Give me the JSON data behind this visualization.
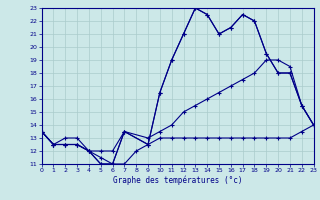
{
  "title": "Graphe des températures (°c)",
  "bg_color": "#cce8e8",
  "grid_color": "#aacccc",
  "line_color": "#000088",
  "ylim": [
    11,
    23
  ],
  "xlim": [
    0,
    23
  ],
  "yticks": [
    11,
    12,
    13,
    14,
    15,
    16,
    17,
    18,
    19,
    20,
    21,
    22,
    23
  ],
  "xticks": [
    0,
    1,
    2,
    3,
    4,
    5,
    6,
    7,
    8,
    9,
    10,
    11,
    12,
    13,
    14,
    15,
    16,
    17,
    18,
    19,
    20,
    21,
    22,
    23
  ],
  "series1_x": [
    0,
    1,
    2,
    3,
    4,
    5,
    6,
    7,
    9,
    10,
    11,
    12,
    13,
    14,
    15,
    16,
    17,
    18,
    19,
    20,
    21,
    22,
    23
  ],
  "series1_y": [
    13.5,
    12.5,
    12.5,
    12.5,
    12.0,
    11.0,
    11.0,
    13.5,
    12.5,
    16.5,
    19.0,
    21.0,
    23.0,
    22.5,
    21.0,
    21.5,
    22.5,
    22.0,
    19.5,
    18.0,
    18.0,
    15.5,
    14.0
  ],
  "series2_x": [
    0,
    1,
    2,
    3,
    4,
    5,
    6,
    7,
    9,
    10,
    11,
    12,
    13,
    14,
    15,
    16,
    17,
    18,
    19,
    20,
    21,
    22,
    23
  ],
  "series2_y": [
    13.5,
    12.5,
    12.5,
    12.5,
    12.0,
    11.0,
    11.0,
    13.5,
    12.5,
    16.5,
    19.0,
    21.0,
    23.0,
    22.5,
    21.0,
    21.5,
    22.5,
    22.0,
    19.5,
    18.0,
    18.0,
    15.5,
    14.0
  ],
  "series3_x": [
    0,
    1,
    2,
    3,
    4,
    5,
    6,
    7,
    9,
    10,
    11,
    12,
    13,
    14,
    15,
    16,
    17,
    18,
    19,
    20,
    21,
    22,
    23
  ],
  "series3_y": [
    13.5,
    12.5,
    13.0,
    13.0,
    12.0,
    12.0,
    12.0,
    13.5,
    13.0,
    13.5,
    14.0,
    15.0,
    15.5,
    16.0,
    16.5,
    17.0,
    17.5,
    18.0,
    19.0,
    19.0,
    18.5,
    15.5,
    14.0
  ],
  "series4_x": [
    0,
    1,
    2,
    3,
    4,
    5,
    6,
    7,
    8,
    9,
    10,
    11,
    12,
    13,
    14,
    15,
    16,
    17,
    18,
    19,
    20,
    21,
    22,
    23
  ],
  "series4_y": [
    13.5,
    12.5,
    12.5,
    12.5,
    12.0,
    11.5,
    11.0,
    11.0,
    12.0,
    12.5,
    13.0,
    13.0,
    13.0,
    13.0,
    13.0,
    13.0,
    13.0,
    13.0,
    13.0,
    13.0,
    13.0,
    13.0,
    13.5,
    14.0
  ]
}
